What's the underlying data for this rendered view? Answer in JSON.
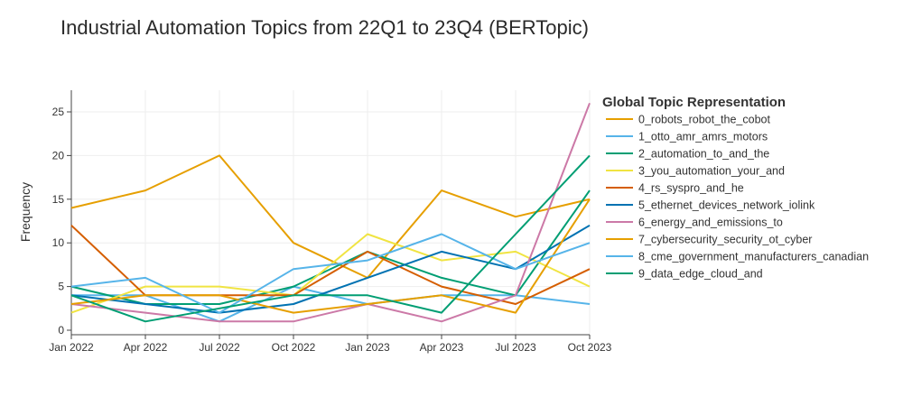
{
  "chart_data": {
    "type": "line",
    "title": "Industrial Automation Topics from 22Q1 to 23Q4 (BERTopic)",
    "xlabel": "",
    "ylabel": "Frequency",
    "x": [
      "2022-01",
      "2022-04",
      "2022-07",
      "2022-10",
      "2023-01",
      "2023-04",
      "2023-07",
      "2023-10"
    ],
    "x_tick_labels": [
      "Jan 2022",
      "Apr 2022",
      "Jul 2022",
      "Oct 2022",
      "Jan 2023",
      "Apr 2023",
      "Jul 2023",
      "Oct 2023"
    ],
    "ylim": [
      0,
      27
    ],
    "y_ticks": [
      0,
      5,
      10,
      15,
      20,
      25
    ],
    "grid": true,
    "legend_title": "Global Topic Representation",
    "legend_position": "right",
    "series": [
      {
        "name": "0_robots_robot_the_cobot",
        "color": "#E69F00",
        "values": [
          14,
          16,
          20,
          10,
          6,
          16,
          13,
          15
        ]
      },
      {
        "name": "1_otto_amr_amrs_motors",
        "color": "#56B4E9",
        "values": [
          4,
          4,
          1,
          5,
          3,
          4,
          4,
          3
        ]
      },
      {
        "name": "2_automation_to_and_the",
        "color": "#009E73",
        "values": [
          5,
          3,
          3,
          5,
          9,
          6,
          4,
          16
        ]
      },
      {
        "name": "3_you_automation_your_and",
        "color": "#F0E442",
        "values": [
          2,
          5,
          5,
          4,
          11,
          8,
          9,
          5
        ]
      },
      {
        "name": "4_rs_syspro_and_he",
        "color": "#D55E00",
        "values": [
          12,
          4,
          4,
          4,
          9,
          5,
          3,
          7
        ]
      },
      {
        "name": "5_ethernet_devices_network_iolink",
        "color": "#0072B2",
        "values": [
          4,
          3,
          2,
          3,
          6,
          9,
          7,
          12
        ]
      },
      {
        "name": "6_energy_and_emissions_to",
        "color": "#CC79A7",
        "values": [
          3,
          2,
          1,
          1,
          3,
          1,
          4,
          26
        ]
      },
      {
        "name": "7_cybersecurity_security_ot_cyber",
        "color": "#E69F00",
        "values": [
          3,
          4,
          4,
          2,
          3,
          4,
          2,
          15
        ]
      },
      {
        "name": "8_cme_government_manufacturers_canadian",
        "color": "#56B4E9",
        "values": [
          5,
          6,
          2,
          7,
          8,
          11,
          7,
          10
        ]
      },
      {
        "name": "9_data_edge_cloud_and",
        "color": "#009E73",
        "values": [
          4,
          1,
          2.5,
          4,
          4,
          2,
          11,
          20
        ]
      }
    ]
  }
}
